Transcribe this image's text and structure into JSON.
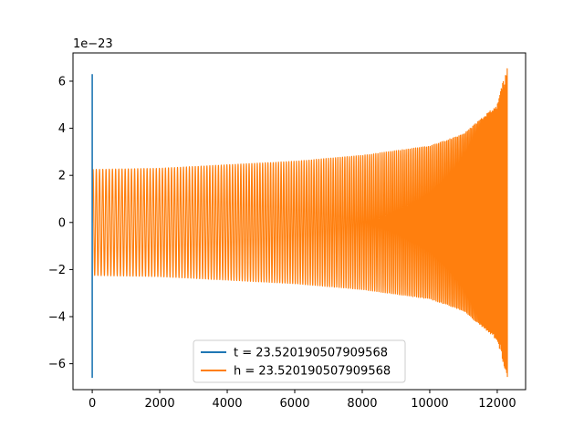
{
  "chart_data": {
    "type": "line",
    "title": "",
    "xlabel": "",
    "ylabel": "",
    "y_offset_text": "1e−23",
    "xlim": [
      -570,
      12840
    ],
    "ylim": [
      -7.1,
      7.2
    ],
    "x_ticks": [
      0,
      2000,
      4000,
      6000,
      8000,
      10000,
      12000
    ],
    "x_tick_labels": [
      "0",
      "2000",
      "4000",
      "6000",
      "8000",
      "10000",
      "12000"
    ],
    "y_ticks": [
      -6,
      -4,
      -2,
      0,
      2,
      4,
      6
    ],
    "y_tick_labels": [
      "−6",
      "−4",
      "−2",
      "0",
      "2",
      "4",
      "6"
    ],
    "grid": false,
    "legend_position": "bottom-center",
    "series": [
      {
        "name": "t = 23.520190507909568",
        "color": "#1f77b4",
        "description": "spike at index ~0",
        "x": [
          0,
          0,
          0
        ],
        "values": [
          6.3,
          -6.6,
          0
        ],
        "range_min": -6.6,
        "range_max": 6.3
      },
      {
        "name": "h = 23.520190507909568",
        "color": "#ff7f0e",
        "description": "oscillating chirp, amplitude envelope",
        "x": [
          0,
          2000,
          4000,
          6000,
          8000,
          10000,
          11000,
          12000,
          12300
        ],
        "envelope_upper": [
          2.25,
          2.3,
          2.45,
          2.6,
          2.85,
          3.25,
          3.75,
          5.0,
          6.7
        ],
        "envelope_lower": [
          -2.25,
          -2.3,
          -2.45,
          -2.6,
          -2.85,
          -3.25,
          -3.75,
          -5.0,
          -6.6
        ]
      }
    ]
  }
}
